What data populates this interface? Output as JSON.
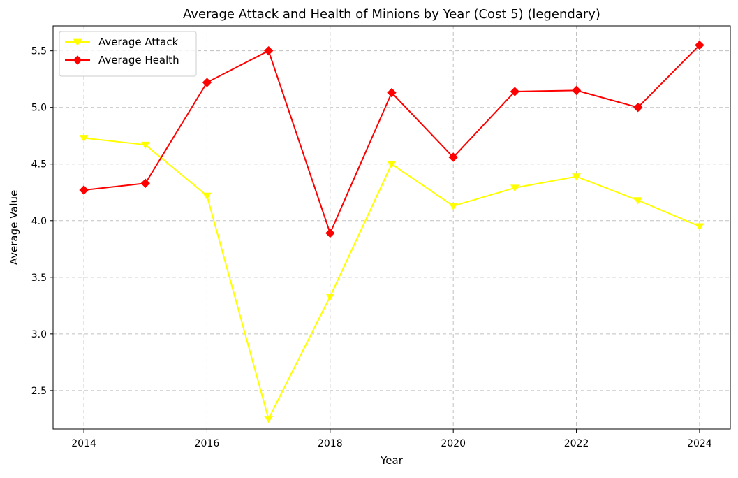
{
  "chart_data": {
    "type": "line",
    "title": "Average Attack and Health of Minions by Year (Cost 5) (legendary)",
    "xlabel": "Year",
    "ylabel": "Average Value",
    "x": [
      2014,
      2015,
      2016,
      2017,
      2018,
      2019,
      2020,
      2021,
      2022,
      2023,
      2024
    ],
    "xlim": [
      2013.5,
      2024.5
    ],
    "ylim": [
      2.16,
      5.72
    ],
    "xticks": [
      2014,
      2016,
      2018,
      2020,
      2022,
      2024
    ],
    "xtick_labels": [
      "2014",
      "2016",
      "2018",
      "2020",
      "2022",
      "2024"
    ],
    "yticks": [
      2.5,
      3.0,
      3.5,
      4.0,
      4.5,
      5.0,
      5.5
    ],
    "ytick_labels": [
      "2.5",
      "3.0",
      "3.5",
      "4.0",
      "4.5",
      "5.0",
      "5.5"
    ],
    "grid": true,
    "legend_position": "top-left",
    "series": [
      {
        "name": "Average Attack",
        "color": "#ffff00",
        "marker": "triangle-down",
        "values": [
          4.73,
          4.67,
          4.22,
          2.25,
          3.33,
          4.5,
          4.13,
          4.29,
          4.39,
          4.18,
          3.95
        ]
      },
      {
        "name": "Average Health",
        "color": "#ff0000",
        "marker": "diamond",
        "values": [
          4.27,
          4.33,
          5.22,
          5.5,
          3.89,
          5.13,
          4.56,
          5.14,
          5.15,
          5.0,
          5.55
        ]
      }
    ]
  }
}
